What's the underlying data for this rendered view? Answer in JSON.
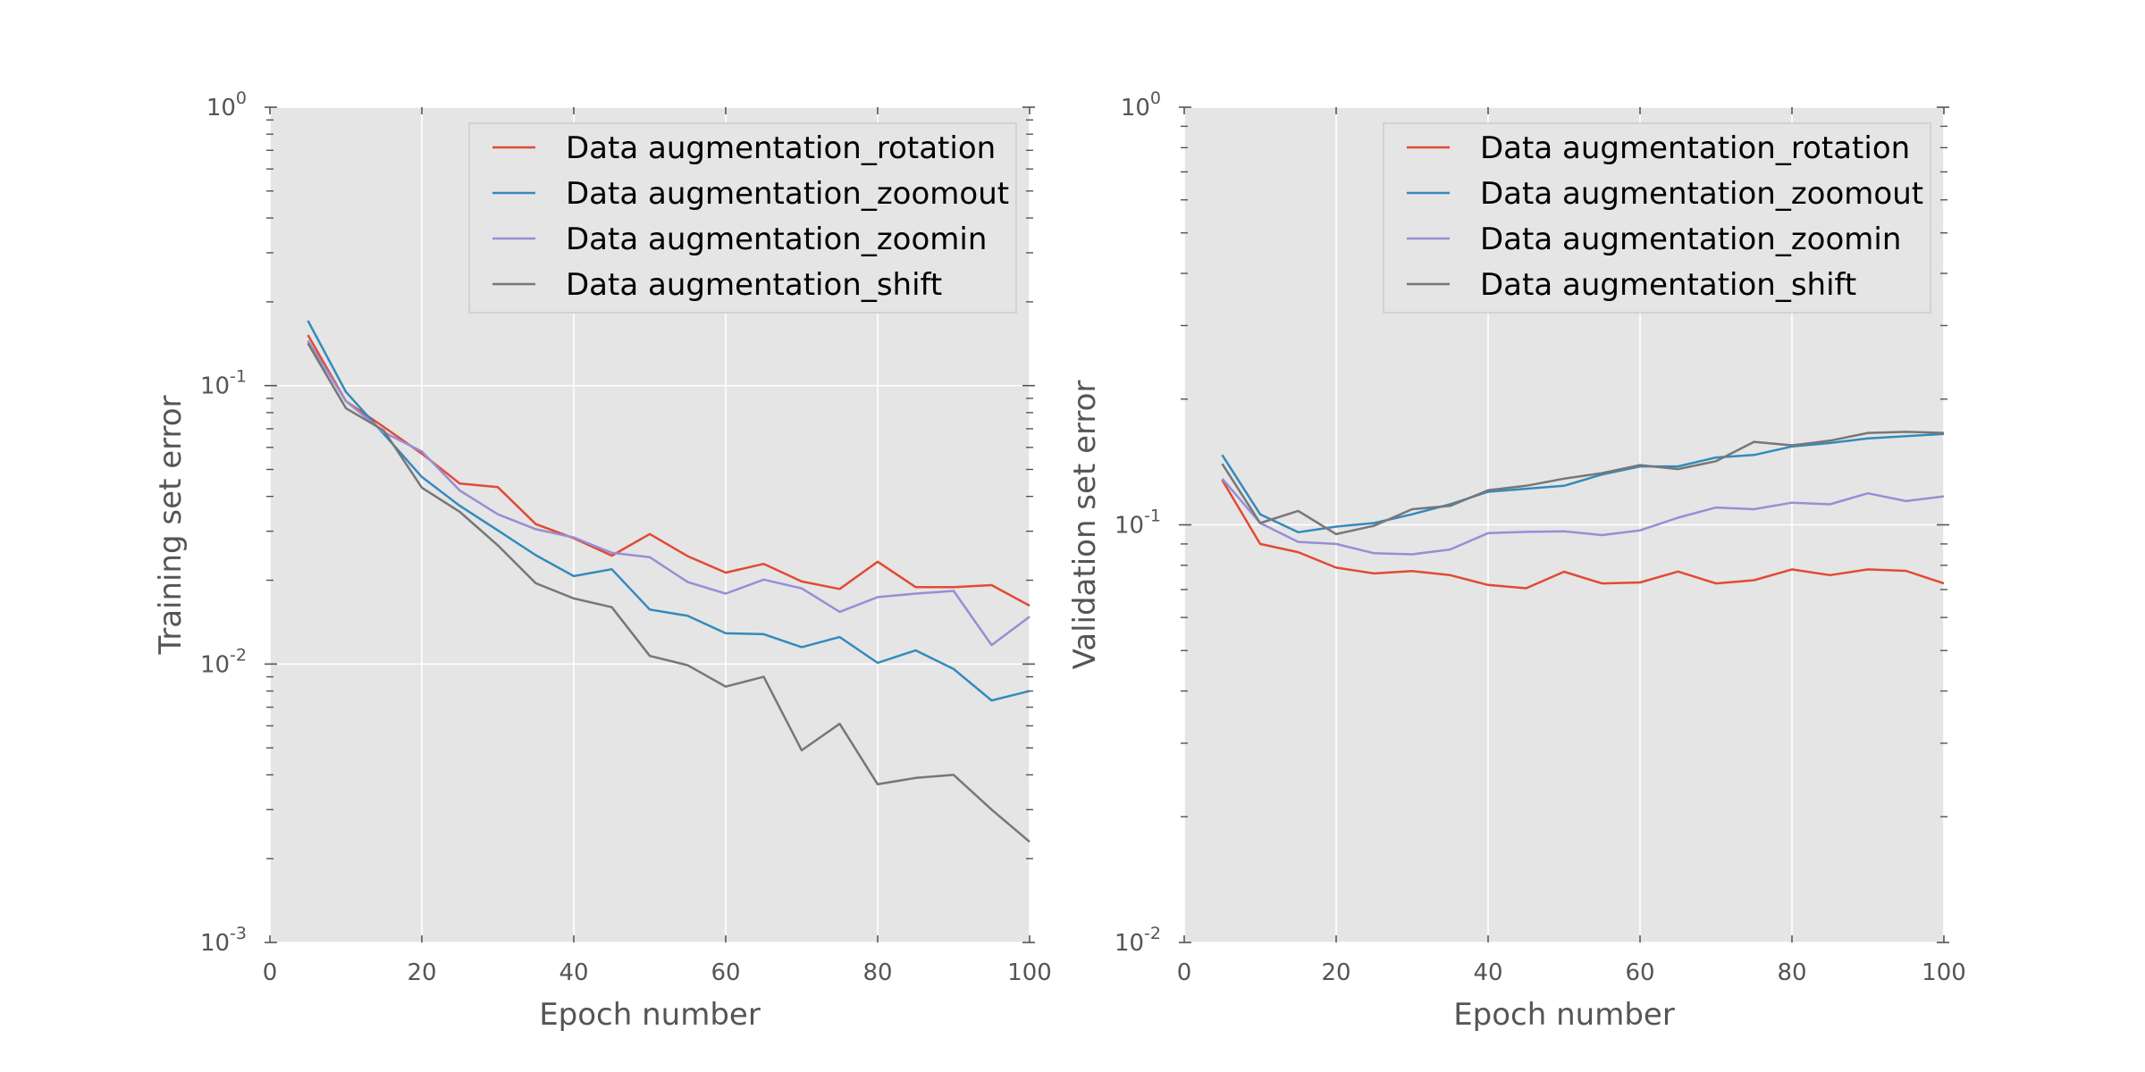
{
  "chart_data": [
    {
      "type": "line",
      "title": "",
      "xlabel": "Epoch number",
      "ylabel": "Training set error",
      "yscale": "log",
      "xlim": [
        0,
        100
      ],
      "ylim": [
        0.001,
        1
      ],
      "xticks": [
        "0",
        "20",
        "40",
        "60",
        "80",
        "100"
      ],
      "yticks": [
        {
          "base": "10",
          "exp": "-3"
        },
        {
          "base": "10",
          "exp": "-2"
        },
        {
          "base": "10",
          "exp": "-1"
        },
        {
          "base": "10",
          "exp": "0"
        }
      ],
      "grid": true,
      "legend_position": "top-right",
      "x": [
        5,
        10,
        15,
        20,
        25,
        30,
        35,
        40,
        45,
        50,
        55,
        60,
        65,
        70,
        75,
        80,
        85,
        90,
        95,
        100
      ],
      "series": [
        {
          "name": "Data augmentation_rotation",
          "color": "#e24a33",
          "values": [
            0.152,
            0.088,
            0.071,
            0.057,
            0.0445,
            0.0432,
            0.0318,
            0.0283,
            0.0245,
            0.0293,
            0.0244,
            0.0213,
            0.0229,
            0.0198,
            0.0186,
            0.0233,
            0.0189,
            0.0189,
            0.0192,
            0.0162
          ]
        },
        {
          "name": "Data augmentation_zoomout",
          "color": "#348abd",
          "values": [
            0.171,
            0.095,
            0.067,
            0.047,
            0.037,
            0.0302,
            0.0246,
            0.0207,
            0.0219,
            0.0157,
            0.0149,
            0.0129,
            0.0128,
            0.0115,
            0.0125,
            0.0101,
            0.0112,
            0.0096,
            0.0074,
            0.008
          ]
        },
        {
          "name": "Data augmentation_zoomin",
          "color": "#988ed5",
          "values": [
            0.145,
            0.088,
            0.068,
            0.058,
            0.042,
            0.0345,
            0.0305,
            0.0285,
            0.0251,
            0.0242,
            0.0197,
            0.0179,
            0.0201,
            0.0187,
            0.0154,
            0.0174,
            0.0179,
            0.0183,
            0.0117,
            0.0148
          ]
        },
        {
          "name": "Data augmentation_shift",
          "color": "#777777",
          "values": [
            0.142,
            0.083,
            0.069,
            0.043,
            0.0352,
            0.0267,
            0.0195,
            0.0172,
            0.016,
            0.0107,
            0.0099,
            0.0083,
            0.009,
            0.0049,
            0.0061,
            0.0037,
            0.0039,
            0.004,
            0.003,
            0.0023
          ]
        }
      ]
    },
    {
      "type": "line",
      "title": "",
      "xlabel": "Epoch number",
      "ylabel": "Validation set error",
      "yscale": "log",
      "xlim": [
        0,
        100
      ],
      "ylim": [
        0.01,
        1
      ],
      "xticks": [
        "0",
        "20",
        "40",
        "60",
        "80",
        "100"
      ],
      "yticks": [
        {
          "base": "10",
          "exp": "-2"
        },
        {
          "base": "10",
          "exp": "-1"
        },
        {
          "base": "10",
          "exp": "0"
        }
      ],
      "grid": true,
      "legend_position": "top-right",
      "x": [
        5,
        10,
        15,
        20,
        25,
        30,
        35,
        40,
        45,
        50,
        55,
        60,
        65,
        70,
        75,
        80,
        85,
        90,
        95,
        100
      ],
      "series": [
        {
          "name": "Data augmentation_rotation",
          "color": "#e24a33",
          "values": [
            0.128,
            0.09,
            0.086,
            0.079,
            0.0765,
            0.0775,
            0.0758,
            0.0718,
            0.0705,
            0.0772,
            0.0724,
            0.0728,
            0.0773,
            0.0724,
            0.0737,
            0.0782,
            0.0758,
            0.0782,
            0.0776,
            0.0724
          ]
        },
        {
          "name": "Data augmentation_zoomout",
          "color": "#348abd",
          "values": [
            0.147,
            0.106,
            0.096,
            0.099,
            0.101,
            0.106,
            0.112,
            0.12,
            0.122,
            0.124,
            0.132,
            0.138,
            0.138,
            0.145,
            0.147,
            0.154,
            0.157,
            0.161,
            0.163,
            0.165
          ]
        },
        {
          "name": "Data augmentation_zoomin",
          "color": "#988ed5",
          "values": [
            0.129,
            0.101,
            0.091,
            0.09,
            0.0855,
            0.085,
            0.0873,
            0.0955,
            0.0962,
            0.0965,
            0.0945,
            0.097,
            0.104,
            0.11,
            0.109,
            0.113,
            0.112,
            0.119,
            0.114,
            0.117
          ]
        },
        {
          "name": "Data augmentation_shift",
          "color": "#777777",
          "values": [
            0.14,
            0.101,
            0.108,
            0.095,
            0.0995,
            0.109,
            0.111,
            0.121,
            0.124,
            0.129,
            0.133,
            0.139,
            0.136,
            0.142,
            0.158,
            0.155,
            0.159,
            0.166,
            0.167,
            0.166
          ]
        }
      ]
    }
  ]
}
